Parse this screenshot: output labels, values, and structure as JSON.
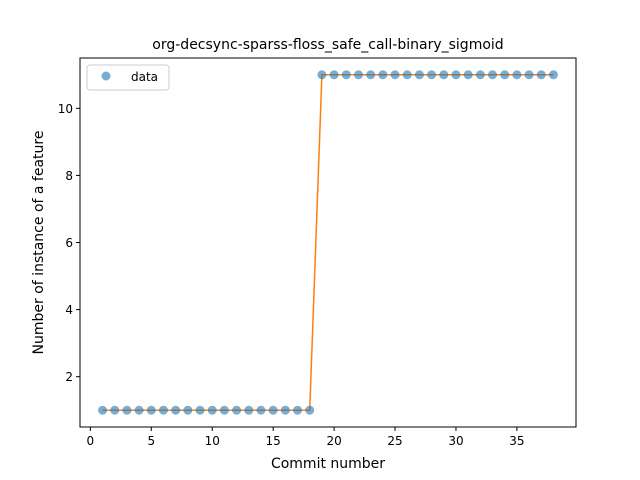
{
  "chart_data": {
    "type": "scatter",
    "title": "org-decsync-sparss-floss_safe_call-binary_sigmoid",
    "xlabel": "Commit number",
    "ylabel": "Number of instance of a feature",
    "xlim": [
      -0.85,
      39.85
    ],
    "ylim": [
      0.5,
      11.5
    ],
    "xticks": [
      0,
      5,
      10,
      15,
      20,
      25,
      30,
      35
    ],
    "yticks": [
      2,
      4,
      6,
      8,
      10
    ],
    "grid": false,
    "legend": {
      "position": "upper-left",
      "entries": [
        "data"
      ]
    },
    "series": [
      {
        "name": "data",
        "style": "markers",
        "color": "#1f77b4",
        "x": [
          1,
          2,
          3,
          4,
          5,
          6,
          7,
          8,
          9,
          10,
          11,
          12,
          13,
          14,
          15,
          16,
          17,
          18,
          19,
          20,
          21,
          22,
          23,
          24,
          25,
          26,
          27,
          28,
          29,
          30,
          31,
          32,
          33,
          34,
          35,
          36,
          37,
          38
        ],
        "y": [
          1,
          1,
          1,
          1,
          1,
          1,
          1,
          1,
          1,
          1,
          1,
          1,
          1,
          1,
          1,
          1,
          1,
          1,
          11,
          11,
          11,
          11,
          11,
          11,
          11,
          11,
          11,
          11,
          11,
          11,
          11,
          11,
          11,
          11,
          11,
          11,
          11,
          11
        ]
      },
      {
        "style": "line",
        "color": "#ff7f0e",
        "x": [
          1,
          2,
          3,
          4,
          5,
          6,
          7,
          8,
          9,
          10,
          11,
          12,
          13,
          14,
          15,
          16,
          17,
          18,
          19,
          20,
          21,
          22,
          23,
          24,
          25,
          26,
          27,
          28,
          29,
          30,
          31,
          32,
          33,
          34,
          35,
          36,
          37,
          38
        ],
        "y": [
          1,
          1,
          1,
          1,
          1,
          1,
          1,
          1,
          1,
          1,
          1,
          1,
          1,
          1,
          1,
          1,
          1,
          1,
          11,
          11,
          11,
          11,
          11,
          11,
          11,
          11,
          11,
          11,
          11,
          11,
          11,
          11,
          11,
          11,
          11,
          11,
          11,
          11
        ]
      }
    ]
  }
}
